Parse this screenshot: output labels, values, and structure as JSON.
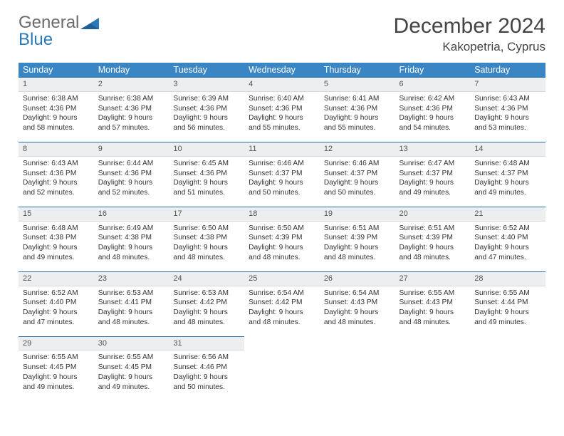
{
  "brand": {
    "line1": "General",
    "line2": "Blue"
  },
  "colors": {
    "header_bg": "#3a85c4",
    "header_text": "#ffffff",
    "cell_num_bg": "#eceeef",
    "cell_border_top": "#2a6fa5",
    "logo_gray": "#6b6b6b",
    "logo_blue": "#2a7ab9"
  },
  "title": "December 2024",
  "location": "Kakopetria, Cyprus",
  "weekdays": [
    "Sunday",
    "Monday",
    "Tuesday",
    "Wednesday",
    "Thursday",
    "Friday",
    "Saturday"
  ],
  "weeks": [
    [
      {
        "n": "1",
        "sr": "6:38 AM",
        "ss": "4:36 PM",
        "dl": "9 hours and 58 minutes."
      },
      {
        "n": "2",
        "sr": "6:38 AM",
        "ss": "4:36 PM",
        "dl": "9 hours and 57 minutes."
      },
      {
        "n": "3",
        "sr": "6:39 AM",
        "ss": "4:36 PM",
        "dl": "9 hours and 56 minutes."
      },
      {
        "n": "4",
        "sr": "6:40 AM",
        "ss": "4:36 PM",
        "dl": "9 hours and 55 minutes."
      },
      {
        "n": "5",
        "sr": "6:41 AM",
        "ss": "4:36 PM",
        "dl": "9 hours and 55 minutes."
      },
      {
        "n": "6",
        "sr": "6:42 AM",
        "ss": "4:36 PM",
        "dl": "9 hours and 54 minutes."
      },
      {
        "n": "7",
        "sr": "6:43 AM",
        "ss": "4:36 PM",
        "dl": "9 hours and 53 minutes."
      }
    ],
    [
      {
        "n": "8",
        "sr": "6:43 AM",
        "ss": "4:36 PM",
        "dl": "9 hours and 52 minutes."
      },
      {
        "n": "9",
        "sr": "6:44 AM",
        "ss": "4:36 PM",
        "dl": "9 hours and 52 minutes."
      },
      {
        "n": "10",
        "sr": "6:45 AM",
        "ss": "4:36 PM",
        "dl": "9 hours and 51 minutes."
      },
      {
        "n": "11",
        "sr": "6:46 AM",
        "ss": "4:37 PM",
        "dl": "9 hours and 50 minutes."
      },
      {
        "n": "12",
        "sr": "6:46 AM",
        "ss": "4:37 PM",
        "dl": "9 hours and 50 minutes."
      },
      {
        "n": "13",
        "sr": "6:47 AM",
        "ss": "4:37 PM",
        "dl": "9 hours and 49 minutes."
      },
      {
        "n": "14",
        "sr": "6:48 AM",
        "ss": "4:37 PM",
        "dl": "9 hours and 49 minutes."
      }
    ],
    [
      {
        "n": "15",
        "sr": "6:48 AM",
        "ss": "4:38 PM",
        "dl": "9 hours and 49 minutes."
      },
      {
        "n": "16",
        "sr": "6:49 AM",
        "ss": "4:38 PM",
        "dl": "9 hours and 48 minutes."
      },
      {
        "n": "17",
        "sr": "6:50 AM",
        "ss": "4:38 PM",
        "dl": "9 hours and 48 minutes."
      },
      {
        "n": "18",
        "sr": "6:50 AM",
        "ss": "4:39 PM",
        "dl": "9 hours and 48 minutes."
      },
      {
        "n": "19",
        "sr": "6:51 AM",
        "ss": "4:39 PM",
        "dl": "9 hours and 48 minutes."
      },
      {
        "n": "20",
        "sr": "6:51 AM",
        "ss": "4:39 PM",
        "dl": "9 hours and 48 minutes."
      },
      {
        "n": "21",
        "sr": "6:52 AM",
        "ss": "4:40 PM",
        "dl": "9 hours and 47 minutes."
      }
    ],
    [
      {
        "n": "22",
        "sr": "6:52 AM",
        "ss": "4:40 PM",
        "dl": "9 hours and 47 minutes."
      },
      {
        "n": "23",
        "sr": "6:53 AM",
        "ss": "4:41 PM",
        "dl": "9 hours and 48 minutes."
      },
      {
        "n": "24",
        "sr": "6:53 AM",
        "ss": "4:42 PM",
        "dl": "9 hours and 48 minutes."
      },
      {
        "n": "25",
        "sr": "6:54 AM",
        "ss": "4:42 PM",
        "dl": "9 hours and 48 minutes."
      },
      {
        "n": "26",
        "sr": "6:54 AM",
        "ss": "4:43 PM",
        "dl": "9 hours and 48 minutes."
      },
      {
        "n": "27",
        "sr": "6:55 AM",
        "ss": "4:43 PM",
        "dl": "9 hours and 48 minutes."
      },
      {
        "n": "28",
        "sr": "6:55 AM",
        "ss": "4:44 PM",
        "dl": "9 hours and 49 minutes."
      }
    ],
    [
      {
        "n": "29",
        "sr": "6:55 AM",
        "ss": "4:45 PM",
        "dl": "9 hours and 49 minutes."
      },
      {
        "n": "30",
        "sr": "6:55 AM",
        "ss": "4:45 PM",
        "dl": "9 hours and 49 minutes."
      },
      {
        "n": "31",
        "sr": "6:56 AM",
        "ss": "4:46 PM",
        "dl": "9 hours and 50 minutes."
      },
      null,
      null,
      null,
      null
    ]
  ],
  "labels": {
    "sunrise": "Sunrise:",
    "sunset": "Sunset:",
    "daylight": "Daylight:"
  }
}
